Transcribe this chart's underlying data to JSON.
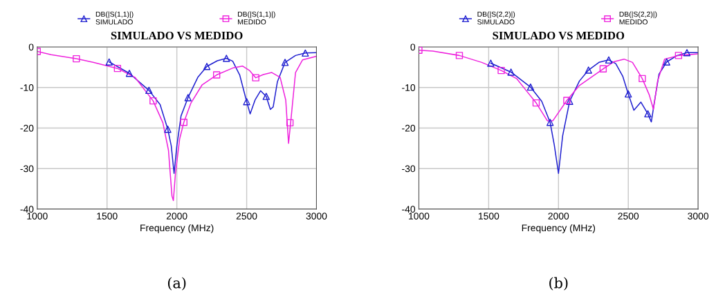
{
  "chart_data": [
    {
      "type": "line",
      "title": "SIMULADO VS MEDIDO",
      "xlabel": "Frequency (MHz)",
      "xlim": [
        1000,
        3000
      ],
      "xticks": [
        1000,
        1500,
        2000,
        2500,
        3000
      ],
      "ylim": [
        -40,
        0
      ],
      "yticks": [
        -40,
        -30,
        -20,
        -10,
        0
      ],
      "grid": true,
      "legend": "top",
      "annotations": [
        "(a)"
      ],
      "series": [
        {
          "name": "DB(|S(1,1)|)\nSIMULADO",
          "color": "#1f1fd0",
          "x": [
            1515,
            1660,
            1800,
            1880,
            1935,
            1960,
            1980,
            2000,
            2030,
            2080,
            2150,
            2215,
            2290,
            2355,
            2400,
            2450,
            2500,
            2525,
            2560,
            2600,
            2640,
            2670,
            2690,
            2720,
            2775,
            2850,
            2920,
            3000
          ],
          "values": [
            -3.7,
            -6.5,
            -10.7,
            -14.2,
            -20.3,
            -24.4,
            -31.2,
            -24.4,
            -17,
            -12.5,
            -7.5,
            -4.8,
            -3.4,
            -2.8,
            -3.5,
            -6.9,
            -13.5,
            -16.5,
            -13.1,
            -10.8,
            -12.2,
            -15.4,
            -14.8,
            -8.6,
            -3.8,
            -2.1,
            -1.5,
            -1.4
          ]
        },
        {
          "name": "DB(|S(1,1)|)\nMEDIDO",
          "color": "#ee22dd",
          "x": [
            1000,
            1100,
            1280,
            1400,
            1575,
            1700,
            1830,
            1900,
            1940,
            1965,
            1975,
            1990,
            2020,
            2050,
            2100,
            2180,
            2285,
            2400,
            2470,
            2520,
            2565,
            2620,
            2680,
            2740,
            2780,
            2800,
            2815,
            2850,
            2900,
            3000
          ],
          "values": [
            -1.1,
            -1.9,
            -2.9,
            -3.8,
            -5.3,
            -7.5,
            -13.3,
            -18.7,
            -25.5,
            -36.8,
            -37.9,
            -31.2,
            -22.7,
            -18.6,
            -13.9,
            -9.4,
            -6.9,
            -5.2,
            -4.7,
            -5.8,
            -7.6,
            -6.8,
            -6.3,
            -7.5,
            -13.1,
            -23.8,
            -18.7,
            -6.3,
            -3.2,
            -2.3
          ]
        },
        {
          "type": "scatter",
          "marker": "triangle",
          "color": "#1f1fd0",
          "x": [
            1515,
            1660,
            1800,
            1935,
            2080,
            2215,
            2355,
            2500,
            2640,
            2775,
            2920
          ],
          "values": [
            -3.7,
            -6.5,
            -10.7,
            -20.3,
            -12.5,
            -4.8,
            -2.8,
            -13.5,
            -12.2,
            -3.8,
            -1.5
          ]
        },
        {
          "type": "scatter",
          "marker": "square",
          "color": "#ee22dd",
          "x": [
            1000,
            1280,
            1575,
            1830,
            2050,
            2285,
            2565,
            2810
          ],
          "values": [
            -1.1,
            -2.9,
            -5.3,
            -13.3,
            -18.6,
            -6.9,
            -7.6,
            -18.7
          ]
        }
      ]
    },
    {
      "type": "line",
      "title": "SIMULADO VS MEDIDO",
      "xlabel": "Frequency (MHz)",
      "xlim": [
        1000,
        3000
      ],
      "xticks": [
        1000,
        1500,
        2000,
        2500,
        3000
      ],
      "ylim": [
        -40,
        0
      ],
      "yticks": [
        -40,
        -30,
        -20,
        -10,
        0
      ],
      "grid": true,
      "legend": "top",
      "annotations": [
        "(b)"
      ],
      "series": [
        {
          "name": "DB(|S(2,2)|)\nSIMULADO",
          "color": "#1f1fd0",
          "x": [
            1515,
            1660,
            1800,
            1880,
            1940,
            1970,
            2000,
            2030,
            2080,
            2150,
            2215,
            2290,
            2360,
            2410,
            2460,
            2500,
            2540,
            2590,
            2640,
            2665,
            2690,
            2720,
            2775,
            2850,
            2920,
            3000
          ],
          "values": [
            -4.0,
            -6.2,
            -9.9,
            -13.4,
            -18.6,
            -24.2,
            -31.2,
            -21.9,
            -13.4,
            -8.4,
            -5.7,
            -3.8,
            -3.2,
            -4.1,
            -7.2,
            -11.6,
            -15.6,
            -13.6,
            -16.5,
            -18.5,
            -12.9,
            -6.7,
            -3.7,
            -2.1,
            -1.4,
            -1.4
          ]
        },
        {
          "name": "DB(|S(2,2)|)\nMEDIDO",
          "color": "#ee22dd",
          "x": [
            1000,
            1100,
            1290,
            1450,
            1590,
            1700,
            1840,
            1920,
            1960,
            2060,
            2150,
            2320,
            2400,
            2470,
            2530,
            2600,
            2650,
            2680,
            2710,
            2760,
            2860,
            3000
          ],
          "values": [
            -0.8,
            -1.0,
            -2.1,
            -3.8,
            -5.8,
            -7.8,
            -13.8,
            -18.2,
            -18.2,
            -13.2,
            -9.5,
            -5.4,
            -3.6,
            -3.0,
            -3.8,
            -7.8,
            -11.8,
            -15.4,
            -8.4,
            -3.0,
            -2.1,
            -1.7
          ]
        },
        {
          "type": "scatter",
          "marker": "triangle",
          "color": "#1f1fd0",
          "x": [
            1515,
            1660,
            1800,
            1940,
            2080,
            2215,
            2360,
            2500,
            2640,
            2775,
            2920
          ],
          "values": [
            -4.0,
            -6.2,
            -9.9,
            -18.6,
            -13.4,
            -5.7,
            -3.2,
            -11.6,
            -16.5,
            -3.7,
            -1.4
          ]
        },
        {
          "type": "scatter",
          "marker": "square",
          "color": "#ee22dd",
          "x": [
            1000,
            1290,
            1590,
            1840,
            2060,
            2320,
            2600,
            2860
          ],
          "values": [
            -0.8,
            -2.1,
            -5.8,
            -13.8,
            -13.2,
            -5.4,
            -7.8,
            -2.1
          ]
        }
      ]
    }
  ]
}
